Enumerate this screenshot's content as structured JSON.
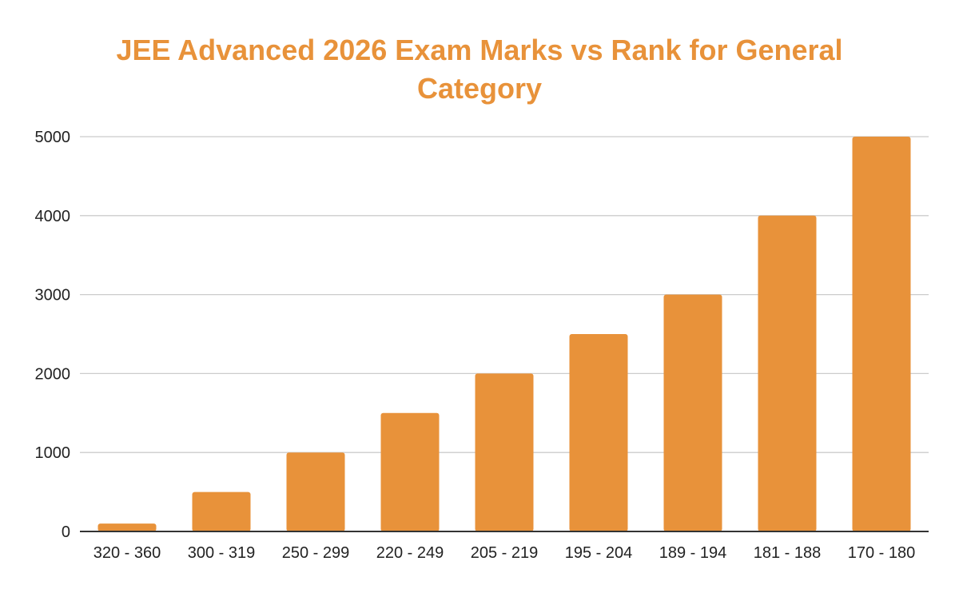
{
  "chart_data": {
    "type": "bar",
    "title": "JEE Advanced 2026 Exam Marks vs Rank for General Category",
    "title_lines": [
      "JEE Advanced 2026 Exam Marks vs Rank for General",
      "Category"
    ],
    "xlabel": "",
    "ylabel": "",
    "categories": [
      "320 - 360",
      "300 - 319",
      "250 - 299",
      "220 - 249",
      "205 - 219",
      "195 - 204",
      "189 - 194",
      "181 - 188",
      "170 - 180"
    ],
    "values": [
      100,
      500,
      1000,
      1500,
      2000,
      2500,
      3000,
      4000,
      5000
    ],
    "ylim": [
      0,
      5000
    ],
    "yticks": [
      "0",
      "1000",
      "2000",
      "3000",
      "4000",
      "5000"
    ],
    "grid": true,
    "legend": "none",
    "colors": {
      "bar": "#e8923a",
      "title": "#e8923a",
      "grid": "#cccccc",
      "axis": "#333333"
    }
  }
}
